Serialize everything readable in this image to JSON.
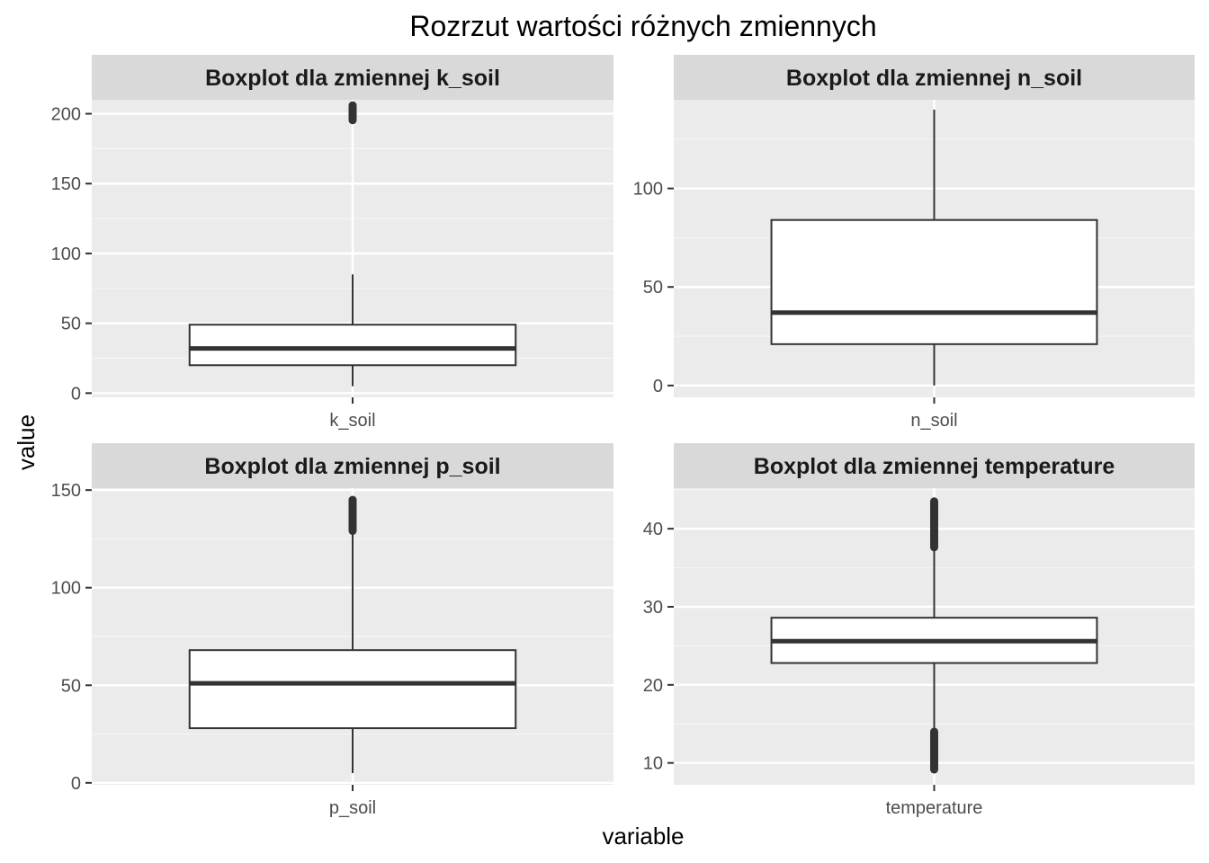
{
  "title": "Rozrzut wartości różnych zmiennych",
  "xlabel": "variable",
  "ylabel": "value",
  "colors": {
    "panel_bg": "#ebebeb",
    "strip_bg": "#d9d9d9",
    "grid_major": "#ffffff",
    "grid_minor": "#f5f5f5",
    "box_line": "#333333",
    "box_fill": "#ffffff",
    "tick_text": "#4d4d4d"
  },
  "chart_data": {
    "type": "boxplot",
    "layout": "2x2 facets",
    "grid": true,
    "facets": [
      {
        "strip": "Boxplot dla zmiennej k_soil",
        "category": "k_soil",
        "ylim": [
          -3,
          210
        ],
        "yticks": [
          0,
          50,
          100,
          150,
          200
        ],
        "yticklabels": [
          "0",
          "50",
          "100",
          "150",
          "200"
        ],
        "box": {
          "whisker_low": 5,
          "q1": 20,
          "median": 32,
          "q3": 49,
          "whisker_high": 85
        },
        "outlier_ranges": [
          [
            195,
            206
          ]
        ]
      },
      {
        "strip": "Boxplot dla zmiennej n_soil",
        "category": "n_soil",
        "ylim": [
          -6,
          145
        ],
        "yticks": [
          0,
          50,
          100
        ],
        "yticklabels": [
          "0",
          "50",
          "100"
        ],
        "box": {
          "whisker_low": 0,
          "q1": 21,
          "median": 37,
          "q3": 84,
          "whisker_high": 140
        },
        "outlier_ranges": []
      },
      {
        "strip": "Boxplot dla zmiennej p_soil",
        "category": "p_soil",
        "ylim": [
          -1,
          151
        ],
        "yticks": [
          0,
          50,
          100,
          150
        ],
        "yticklabels": [
          "0",
          "50",
          "100",
          "150"
        ],
        "box": {
          "whisker_low": 5,
          "q1": 28,
          "median": 51,
          "q3": 68,
          "whisker_high": 129
        },
        "outlier_ranges": [
          [
            129,
            145
          ]
        ]
      },
      {
        "strip": "Boxplot dla zmiennej temperature",
        "category": "temperature",
        "ylim": [
          7.2,
          45.2
        ],
        "yticks": [
          10,
          20,
          30,
          40
        ],
        "yticklabels": [
          "10",
          "20",
          "30",
          "40"
        ],
        "box": {
          "whisker_low": 14,
          "q1": 22.8,
          "median": 25.6,
          "q3": 28.6,
          "whisker_high": 37.5
        },
        "outlier_ranges": [
          [
            9,
            14
          ],
          [
            37.5,
            43.5
          ]
        ]
      }
    ]
  }
}
